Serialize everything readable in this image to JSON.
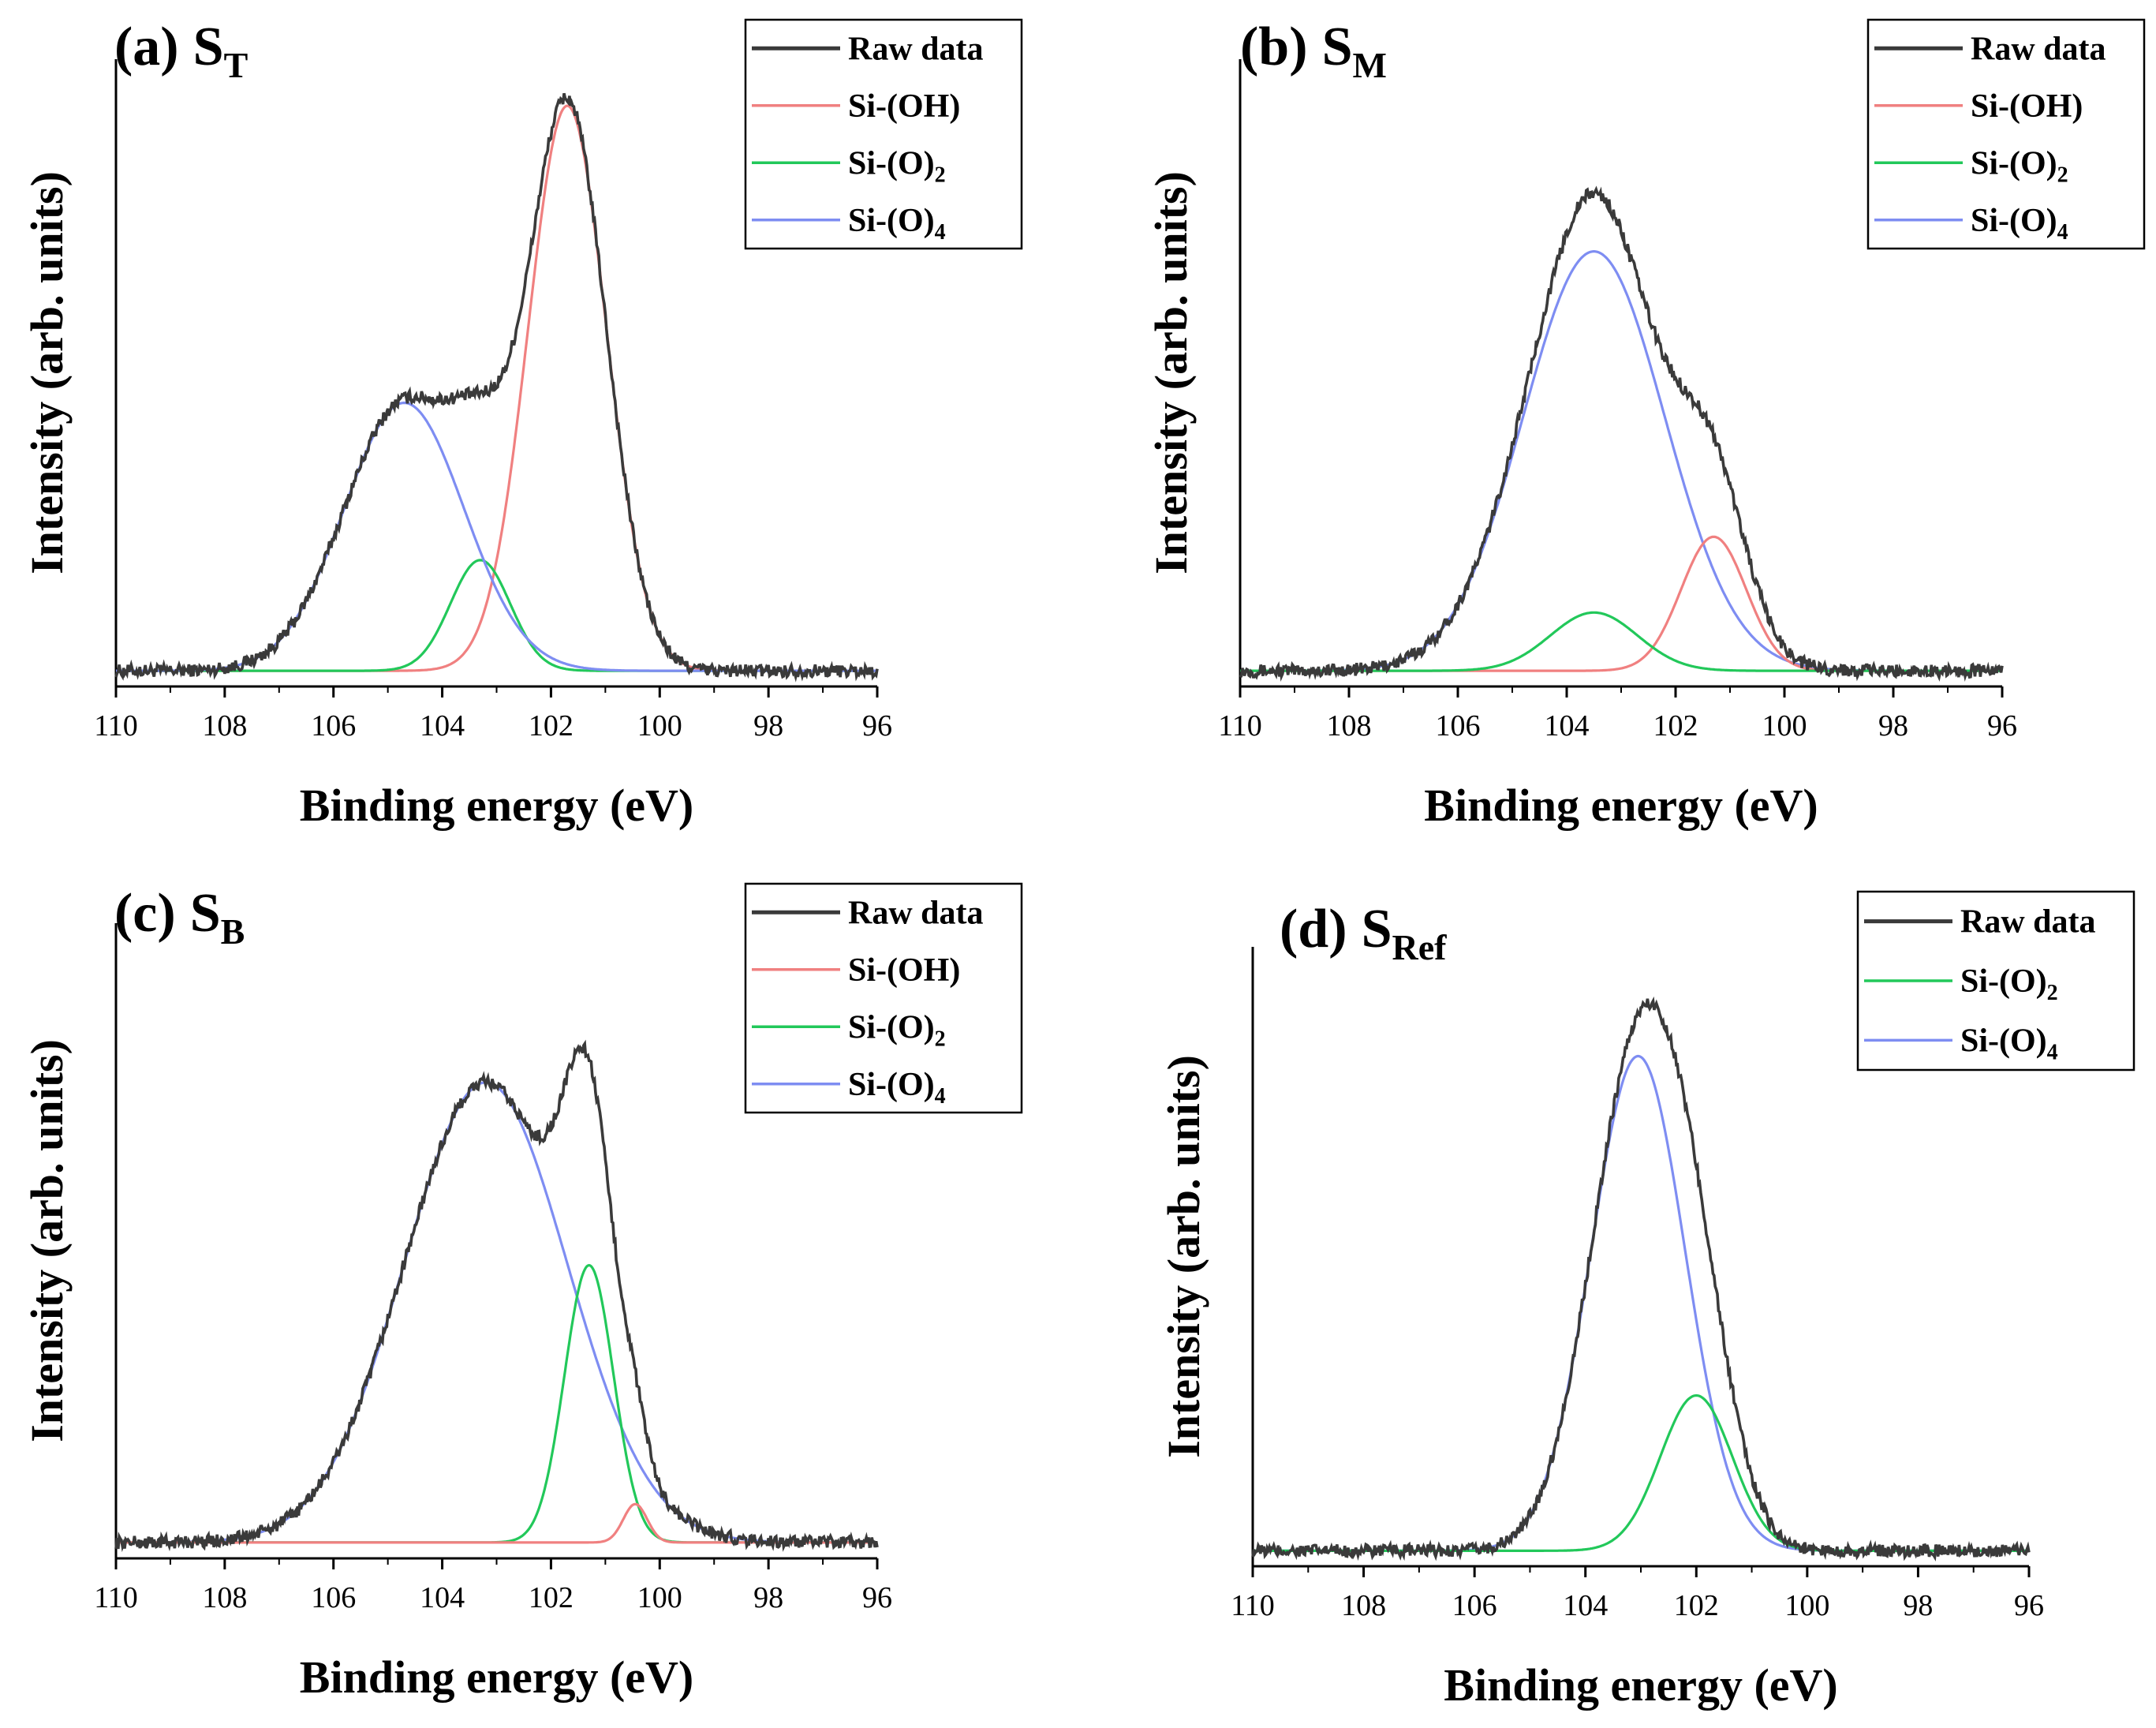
{
  "colors": {
    "raw": "#3a3a3a",
    "si_oh": "#f08080",
    "si_o2": "#22c85a",
    "si_o4": "#7e8df2"
  },
  "chart_data": [
    {
      "panel_label": "(a)",
      "sample_main": "S",
      "sample_sub": "T",
      "type": "line",
      "xlabel": "Binding energy (eV)",
      "ylabel": "Intensity (arb. units)",
      "xlim": [
        110,
        96
      ],
      "xticks": [
        "110",
        "108",
        "106",
        "104",
        "102",
        "100",
        "98",
        "96"
      ],
      "ylim": [
        0,
        1.05
      ],
      "legend": [
        {
          "key": "raw",
          "main": "Raw data",
          "sub": ""
        },
        {
          "key": "si_oh",
          "main": "Si-(OH)",
          "sub": ""
        },
        {
          "key": "si_o2",
          "main": "Si-(O)",
          "sub": "2"
        },
        {
          "key": "si_o4",
          "main": "Si-(O)",
          "sub": "4"
        }
      ],
      "components": [
        {
          "key": "si_oh",
          "center": 101.7,
          "height": 0.97,
          "sigma": 0.72
        },
        {
          "key": "si_o2",
          "center": 103.3,
          "height": 0.19,
          "sigma": 0.55
        },
        {
          "key": "si_o4",
          "center": 104.7,
          "height": 0.46,
          "sigma": 1.1
        }
      ]
    },
    {
      "panel_label": "(b)",
      "sample_main": "S",
      "sample_sub": "M",
      "type": "line",
      "xlabel": "Binding energy (eV)",
      "ylabel": "Intensity (arb. units)",
      "xlim": [
        110,
        96
      ],
      "xticks": [
        "110",
        "108",
        "106",
        "104",
        "102",
        "100",
        "98",
        "96"
      ],
      "ylim": [
        0,
        1.05
      ],
      "legend": [
        {
          "key": "raw",
          "main": "Raw data",
          "sub": ""
        },
        {
          "key": "si_oh",
          "main": "Si-(OH)",
          "sub": ""
        },
        {
          "key": "si_o2",
          "main": "Si-(O)",
          "sub": "2"
        },
        {
          "key": "si_o4",
          "main": "Si-(O)",
          "sub": "4"
        }
      ],
      "components": [
        {
          "key": "si_o4",
          "center": 103.5,
          "height": 0.72,
          "sigma": 1.3
        },
        {
          "key": "si_oh",
          "center": 101.3,
          "height": 0.23,
          "sigma": 0.6
        },
        {
          "key": "si_o2",
          "center": 103.5,
          "height": 0.1,
          "sigma": 0.8
        }
      ]
    },
    {
      "panel_label": "(c)",
      "sample_main": "S",
      "sample_sub": "B",
      "type": "line",
      "xlabel": "Binding energy (eV)",
      "ylabel": "Intensity (arb. units)",
      "xlim": [
        110,
        96
      ],
      "xticks": [
        "110",
        "108",
        "106",
        "104",
        "102",
        "100",
        "98",
        "96"
      ],
      "ylim": [
        0,
        1.05
      ],
      "legend": [
        {
          "key": "raw",
          "main": "Raw data",
          "sub": ""
        },
        {
          "key": "si_oh",
          "main": "Si-(OH)",
          "sub": ""
        },
        {
          "key": "si_o2",
          "main": "Si-(O)",
          "sub": "2"
        },
        {
          "key": "si_o4",
          "main": "Si-(O)",
          "sub": "4"
        }
      ],
      "components": [
        {
          "key": "si_o4",
          "center": 103.2,
          "height": 0.78,
          "sigma": 1.5
        },
        {
          "key": "si_o2",
          "center": 101.3,
          "height": 0.47,
          "sigma": 0.45
        },
        {
          "key": "si_oh",
          "center": 100.45,
          "height": 0.065,
          "sigma": 0.22
        }
      ]
    },
    {
      "panel_label": "(d)",
      "sample_main": "S",
      "sample_sub": "Ref",
      "type": "line",
      "xlabel": "Binding energy (eV)",
      "ylabel": "Intensity (arb. units)",
      "xlim": [
        110,
        96
      ],
      "xticks": [
        "110",
        "108",
        "106",
        "104",
        "102",
        "100",
        "98",
        "96"
      ],
      "ylim": [
        0,
        1.05
      ],
      "legend": [
        {
          "key": "raw",
          "main": "Raw data",
          "sub": ""
        },
        {
          "key": "si_o2",
          "main": "Si-(O)",
          "sub": "2"
        },
        {
          "key": "si_o4",
          "main": "Si-(O)",
          "sub": "4"
        }
      ],
      "components": [
        {
          "key": "si_o4",
          "center": 103.05,
          "height": 0.86,
          "sigma": 0.85
        },
        {
          "key": "si_o2",
          "center": 102.0,
          "height": 0.27,
          "sigma": 0.65
        }
      ]
    }
  ]
}
